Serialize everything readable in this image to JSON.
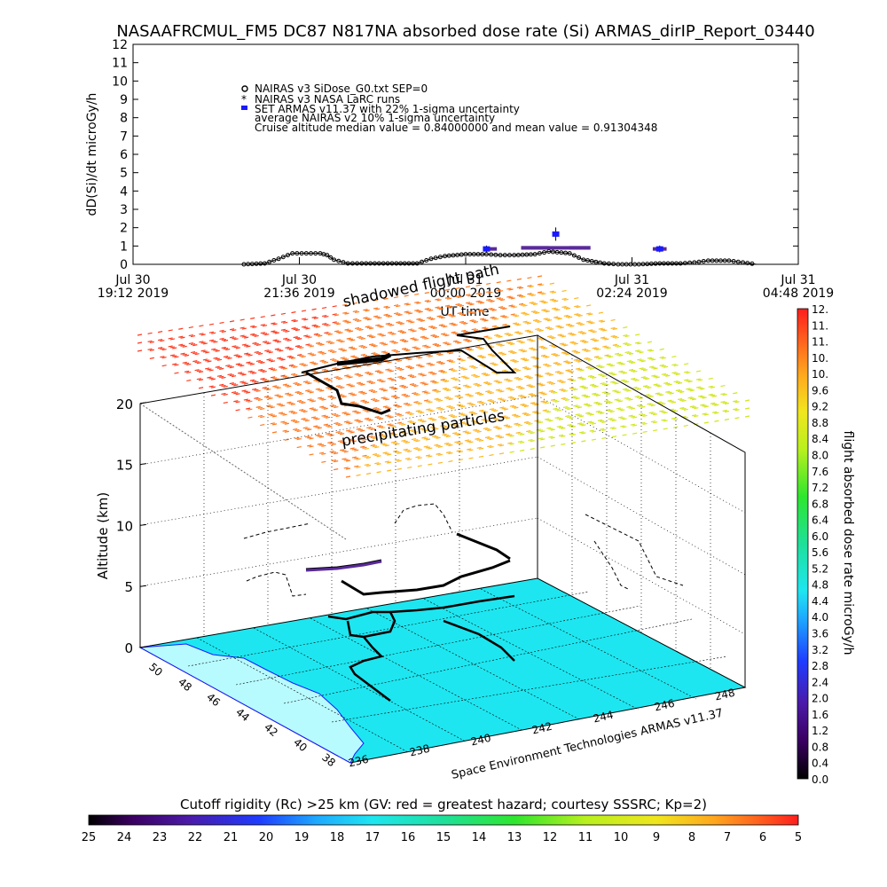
{
  "title": "NASAAFRCMUL_FM5 DC87 N817NA absorbed dose rate (Si) ARMAS_dirIP_Report_03440",
  "colors": {
    "ocean": "#1ee6f0",
    "land": "#b8fbff",
    "track": "#000000",
    "armas": "#1a1aff",
    "nairas5": "#5a2a9a"
  },
  "top_chart": {
    "type": "line",
    "ylabel": "dD(Si)/dt microGy/h",
    "xlabel": "UT time",
    "ylim": [
      0,
      12
    ],
    "yticks": [
      "0",
      "1",
      "2",
      "3",
      "4",
      "5",
      "6",
      "7",
      "8",
      "9",
      "10",
      "11",
      "12"
    ],
    "xlim_hours": [
      19.2,
      28.8
    ],
    "xticks": [
      {
        "l1": "Jul 30",
        "l2": "19:12 2019"
      },
      {
        "l1": "Jul 30",
        "l2": "21:36 2019"
      },
      {
        "l1": "Jul 31",
        "l2": "00:00 2019"
      },
      {
        "l1": "Jul 31",
        "l2": "02:24 2019"
      },
      {
        "l1": "Jul 31",
        "l2": "04:48 2019"
      }
    ],
    "legend": [
      "NAIRAS v3 SiDose_G0.txt SEP=0",
      "NAIRAS v3 NASA LaRC runs",
      "SET ARMAS v11.37 with 22% 1-sigma uncertainty",
      "average NAIRAS v2 10% 1-sigma uncertainty",
      "Cruise altitude median value = 0.84000000 and mean value = 0.91304348"
    ],
    "series": [
      {
        "name": "NAIRAS v3 SiDose_G0.txt SEP=0",
        "x": [
          20.8,
          21.1,
          21.3,
          21.5,
          21.9,
          22.0,
          22.1,
          22.3,
          22.5,
          23.0,
          23.3,
          23.5,
          23.7,
          24.0,
          24.3,
          24.5,
          24.7,
          25.0,
          25.2,
          25.5,
          25.7,
          26.0,
          26.2,
          26.5,
          26.8,
          27.1,
          27.3,
          27.5,
          27.8,
          28.0,
          28.2
        ],
        "y": [
          0.0,
          0.05,
          0.3,
          0.6,
          0.6,
          0.5,
          0.25,
          0.05,
          0.05,
          0.05,
          0.05,
          0.3,
          0.45,
          0.55,
          0.55,
          0.5,
          0.5,
          0.55,
          0.7,
          0.6,
          0.25,
          0.05,
          0.0,
          0.0,
          0.05,
          0.05,
          0.1,
          0.2,
          0.2,
          0.1,
          0.0
        ]
      },
      {
        "name": "SET ARMAS v11.37 with 22% 1-sigma uncertainty",
        "x": [
          24.3,
          25.3,
          26.8
        ],
        "y": [
          0.84,
          1.65,
          0.84
        ]
      },
      {
        "name": "average NAIRAS v2 10% 1-sigma uncertainty",
        "x": [
          24.25,
          24.45,
          24.8,
          25.2,
          25.5,
          25.8,
          26.7,
          26.9
        ],
        "y": [
          0.84,
          0.84,
          0.9,
          0.9,
          0.9,
          0.84,
          0.84,
          0.84
        ]
      }
    ]
  },
  "main_chart": {
    "type": "3d-map",
    "zlabel": "Altitude (km)",
    "zticks": [
      "0",
      "5",
      "10",
      "15",
      "20"
    ],
    "lat_ticks": [
      "38",
      "40",
      "42",
      "44",
      "46",
      "48",
      "50"
    ],
    "lon_ticks": [
      "236",
      "238",
      "240",
      "242",
      "244",
      "246",
      "248"
    ],
    "annotations": {
      "shadow": "shadowed flight path",
      "precip": "precipitating particles",
      "credit": "Space Environment Technologies ARMAS v11.37"
    }
  },
  "right_colorbar": {
    "label": "flight absorbed dose rate microGy/h",
    "ticks": [
      "0.0",
      "0.4",
      "0.8",
      "1.2",
      "1.6",
      "2.0",
      "2.4",
      "2.8",
      "3.2",
      "3.6",
      "4.0",
      "4.4",
      "4.8",
      "5.2",
      "5.6",
      "6.0",
      "6.4",
      "6.8",
      "7.2",
      "7.6",
      "8.0",
      "8.4",
      "8.8",
      "9.2",
      "9.6",
      "10.",
      "10.",
      "11.",
      "11.",
      "12."
    ]
  },
  "bottom_colorbar": {
    "title": "Cutoff rigidity (Rc) >25 km (GV: red = greatest hazard; courtesy SSSRC; Kp=2)",
    "ticks": [
      "25",
      "24",
      "23",
      "22",
      "21",
      "20",
      "19",
      "18",
      "17",
      "16",
      "15",
      "14",
      "13",
      "12",
      "11",
      "10",
      "9",
      "8",
      "7",
      "6",
      "5"
    ]
  }
}
